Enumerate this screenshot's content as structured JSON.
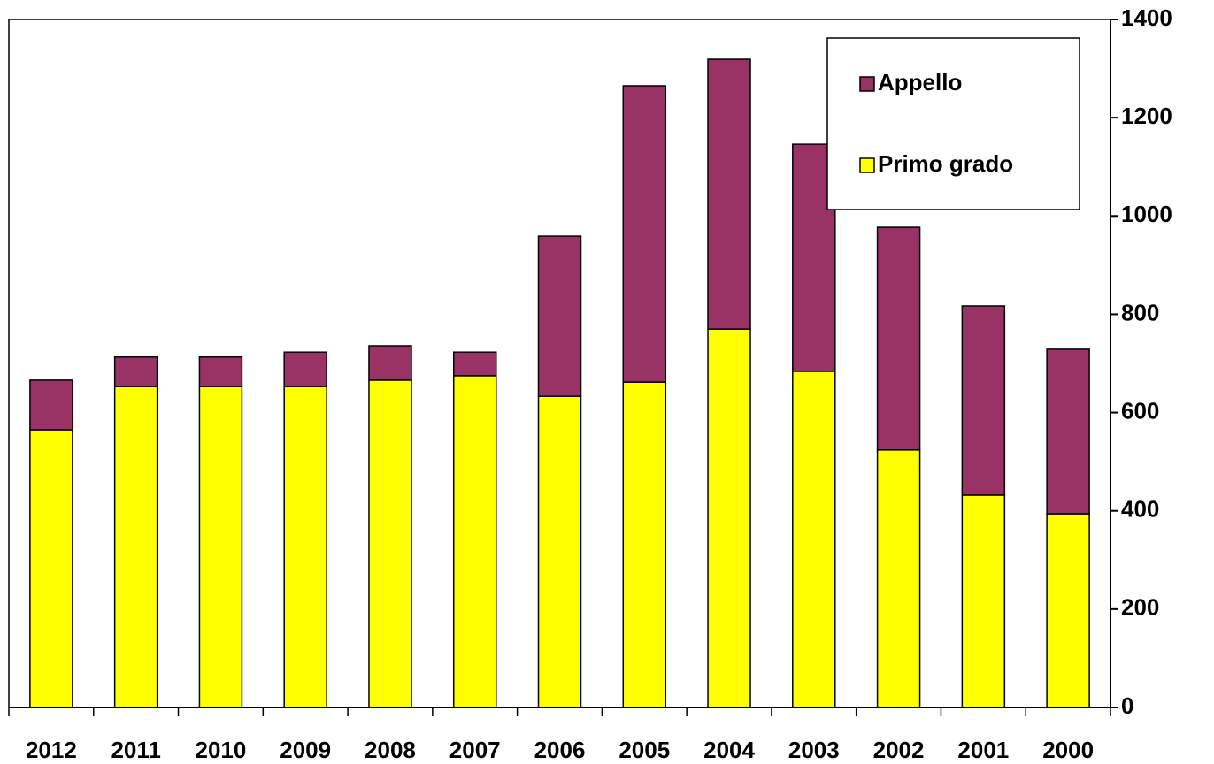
{
  "chart_data": {
    "type": "stacked_bar",
    "categories": [
      "2012",
      "2011",
      "2010",
      "2009",
      "2008",
      "2007",
      "2006",
      "2005",
      "2004",
      "2003",
      "2002",
      "2001",
      "2000"
    ],
    "series": [
      {
        "name": "Primo grado",
        "color": "#ffff00",
        "values": [
          565,
          653,
          653,
          653,
          666,
          675,
          633,
          662,
          770,
          684,
          524,
          432,
          394
        ]
      },
      {
        "name": "Appello",
        "color": "#993366",
        "values": [
          101,
          60,
          60,
          70,
          70,
          48,
          326,
          603,
          549,
          462,
          453,
          385,
          335
        ]
      }
    ],
    "ylim": [
      0,
      1400
    ],
    "yticks": [
      0,
      200,
      400,
      600,
      800,
      1000,
      1200,
      1400
    ],
    "y_axis_side": "right",
    "legend": "top-right"
  }
}
